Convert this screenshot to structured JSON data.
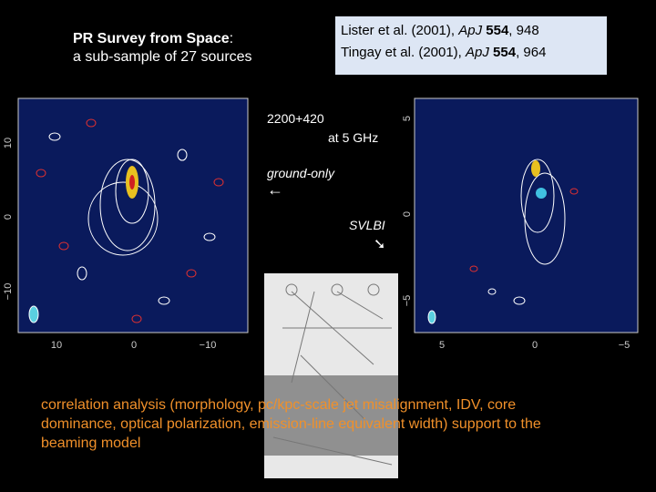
{
  "header": {
    "title_bold": "PR Survey from Space",
    "title_rest": ":",
    "subtitle": "a sub-sample of 27 sources"
  },
  "references": [
    {
      "authors": "Lister et al. (2001), ",
      "journal": "ApJ",
      "volume": "554",
      "page": ", 948"
    },
    {
      "authors": "Tingay et al. (2001), ",
      "journal": "ApJ",
      "volume": "554",
      "page": ", 964"
    }
  ],
  "source": {
    "name": "2200+420",
    "frequency": "at 5 GHz"
  },
  "labels": {
    "ground": "ground-only",
    "ground_arrow": "←",
    "space": "SVLBI",
    "space_arrow": "➘"
  },
  "left_map": {
    "yticks": [
      "10",
      "0",
      "−10"
    ],
    "xticks": [
      "10",
      "0",
      "−10"
    ]
  },
  "right_map": {
    "yticks": [
      "5",
      "0",
      "−5"
    ],
    "xticks": [
      "5",
      "0",
      "−5"
    ]
  },
  "conclusion": [
    "correlation analysis (morphology, pc/kpc-scale jet misalignment, IDV, core",
    "dominance, optical polarization, emission-line equivalent width) support to the",
    "beaming model"
  ]
}
